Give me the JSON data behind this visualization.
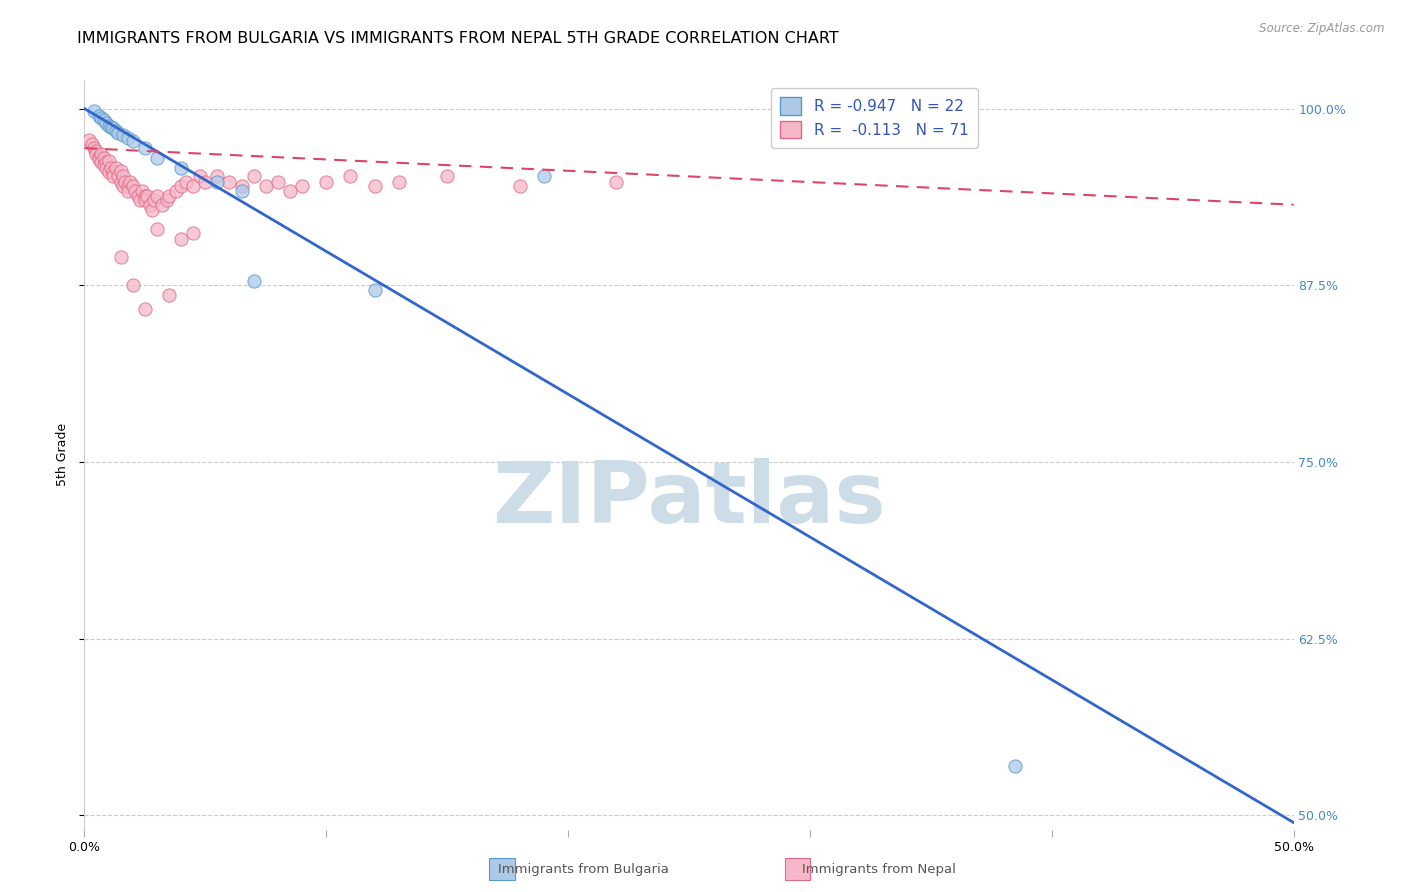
{
  "title": "IMMIGRANTS FROM BULGARIA VS IMMIGRANTS FROM NEPAL 5TH GRADE CORRELATION CHART",
  "source": "Source: ZipAtlas.com",
  "ylabel": "5th Grade",
  "xlim": [
    0.0,
    0.5
  ],
  "ylim": [
    0.49,
    1.02
  ],
  "bulgaria_fill": "#aec9e8",
  "bulgaria_edge": "#5599cc",
  "nepal_fill": "#f5b8c8",
  "nepal_edge": "#e06888",
  "bulgaria_line_color": "#3366cc",
  "nepal_line_color": "#dd4466",
  "bulgaria_R": -0.947,
  "bulgaria_N": 22,
  "nepal_R": -0.113,
  "nepal_N": 71,
  "watermark": "ZIPatlas",
  "watermark_color": "#ccdde8",
  "bg_color": "#ffffff",
  "grid_color": "#cccccc",
  "right_tick_color": "#4488cc",
  "title_fontsize": 11.5,
  "tick_fontsize": 9,
  "axis_label_fontsize": 9,
  "marker_size": 90,
  "legend_fontsize": 11,
  "blue_line_x0": 0.0,
  "blue_line_y0": 1.0,
  "blue_line_x1": 0.5,
  "blue_line_y1": 0.495,
  "pink_line_x0": 0.0,
  "pink_line_y0": 0.972,
  "pink_line_x1": 0.5,
  "pink_line_y1": 0.932,
  "bulgaria_scatter_x": [
    0.004,
    0.006,
    0.007,
    0.008,
    0.009,
    0.01,
    0.011,
    0.012,
    0.013,
    0.014,
    0.016,
    0.018,
    0.02,
    0.025,
    0.03,
    0.04,
    0.055,
    0.065,
    0.07,
    0.12,
    0.19,
    0.385
  ],
  "bulgaria_scatter_y": [
    0.998,
    0.995,
    0.993,
    0.992,
    0.99,
    0.988,
    0.987,
    0.986,
    0.984,
    0.983,
    0.981,
    0.979,
    0.977,
    0.972,
    0.965,
    0.958,
    0.948,
    0.942,
    0.878,
    0.872,
    0.952,
    0.535
  ],
  "nepal_scatter_x": [
    0.002,
    0.003,
    0.004,
    0.005,
    0.005,
    0.006,
    0.006,
    0.007,
    0.007,
    0.008,
    0.008,
    0.009,
    0.009,
    0.01,
    0.01,
    0.011,
    0.012,
    0.012,
    0.013,
    0.014,
    0.015,
    0.015,
    0.016,
    0.016,
    0.017,
    0.018,
    0.018,
    0.019,
    0.02,
    0.021,
    0.022,
    0.023,
    0.024,
    0.025,
    0.025,
    0.026,
    0.027,
    0.028,
    0.029,
    0.03,
    0.032,
    0.034,
    0.035,
    0.038,
    0.04,
    0.042,
    0.045,
    0.048,
    0.05,
    0.055,
    0.06,
    0.065,
    0.07,
    0.075,
    0.08,
    0.085,
    0.09,
    0.1,
    0.11,
    0.12,
    0.13,
    0.15,
    0.18,
    0.22,
    0.03,
    0.04,
    0.045,
    0.015,
    0.02,
    0.025,
    0.035
  ],
  "nepal_scatter_y": [
    0.978,
    0.975,
    0.972,
    0.97,
    0.968,
    0.966,
    0.964,
    0.968,
    0.962,
    0.965,
    0.96,
    0.962,
    0.958,
    0.963,
    0.955,
    0.958,
    0.955,
    0.952,
    0.958,
    0.952,
    0.956,
    0.948,
    0.952,
    0.945,
    0.948,
    0.945,
    0.942,
    0.948,
    0.945,
    0.942,
    0.938,
    0.935,
    0.942,
    0.938,
    0.935,
    0.938,
    0.932,
    0.928,
    0.935,
    0.938,
    0.932,
    0.935,
    0.938,
    0.942,
    0.945,
    0.948,
    0.945,
    0.952,
    0.948,
    0.952,
    0.948,
    0.945,
    0.952,
    0.945,
    0.948,
    0.942,
    0.945,
    0.948,
    0.952,
    0.945,
    0.948,
    0.952,
    0.945,
    0.948,
    0.915,
    0.908,
    0.912,
    0.895,
    0.875,
    0.858,
    0.868
  ]
}
